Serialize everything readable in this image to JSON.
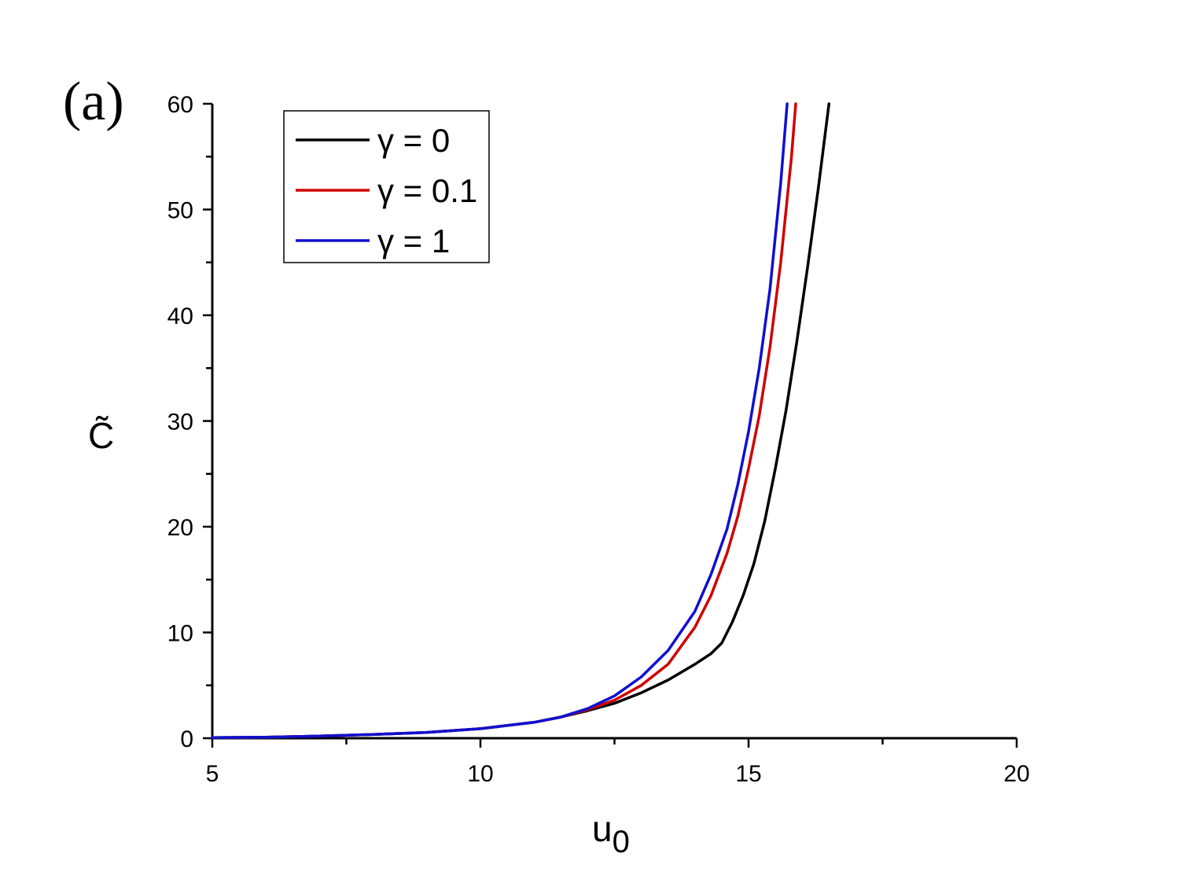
{
  "panel_label": "(a)",
  "chart_data": {
    "type": "line",
    "xlabel": "u",
    "xlabel_sub": "0",
    "ylabel": "C̃",
    "xlim": [
      5,
      20
    ],
    "ylim": [
      0,
      60
    ],
    "x_ticks": [
      5,
      10,
      15,
      20
    ],
    "y_ticks": [
      0,
      10,
      20,
      30,
      40,
      50,
      60
    ],
    "x_tick_labels": [
      "5",
      "10",
      "15",
      "20"
    ],
    "y_tick_labels": [
      "0",
      "10",
      "20",
      "30",
      "40",
      "50",
      "60"
    ],
    "legend_position": "top-left",
    "grid": false,
    "series": [
      {
        "name": "γ = 0",
        "color": "#000000",
        "x": [
          5,
          6,
          7,
          8,
          9,
          10,
          11,
          11.5,
          12,
          12.5,
          13,
          13.5,
          14,
          14.3,
          14.5,
          14.7,
          14.9,
          15.1,
          15.3,
          15.5,
          15.7,
          15.9,
          16.1,
          16.3,
          16.5
        ],
        "y": [
          0.05,
          0.1,
          0.2,
          0.35,
          0.55,
          0.9,
          1.5,
          2.0,
          2.6,
          3.3,
          4.3,
          5.5,
          7.0,
          8.0,
          9.0,
          11.0,
          13.5,
          16.5,
          20.5,
          25.5,
          31.0,
          37.5,
          44.5,
          52.0,
          60.0
        ]
      },
      {
        "name": "γ = 0.1",
        "color": "#d00000",
        "x": [
          5,
          6,
          7,
          8,
          9,
          10,
          11,
          11.5,
          12,
          12.5,
          13,
          13.5,
          14,
          14.3,
          14.6,
          14.8,
          15.0,
          15.2,
          15.4,
          15.6,
          15.8,
          15.88
        ],
        "y": [
          0.05,
          0.1,
          0.2,
          0.35,
          0.55,
          0.9,
          1.5,
          2.0,
          2.7,
          3.6,
          5.0,
          7.0,
          10.5,
          13.5,
          17.5,
          21.0,
          25.5,
          30.5,
          37.0,
          45.0,
          55.0,
          60.0
        ]
      },
      {
        "name": "γ = 1",
        "color": "#1010d0",
        "x": [
          5,
          6,
          7,
          8,
          9,
          10,
          11,
          11.5,
          12,
          12.5,
          13,
          13.5,
          14,
          14.3,
          14.6,
          14.8,
          15.0,
          15.2,
          15.4,
          15.6,
          15.72
        ],
        "y": [
          0.05,
          0.1,
          0.2,
          0.35,
          0.55,
          0.9,
          1.5,
          2.0,
          2.8,
          4.0,
          5.8,
          8.3,
          12.0,
          15.5,
          19.8,
          24.0,
          29.0,
          35.0,
          42.5,
          52.5,
          60.0
        ]
      }
    ]
  }
}
